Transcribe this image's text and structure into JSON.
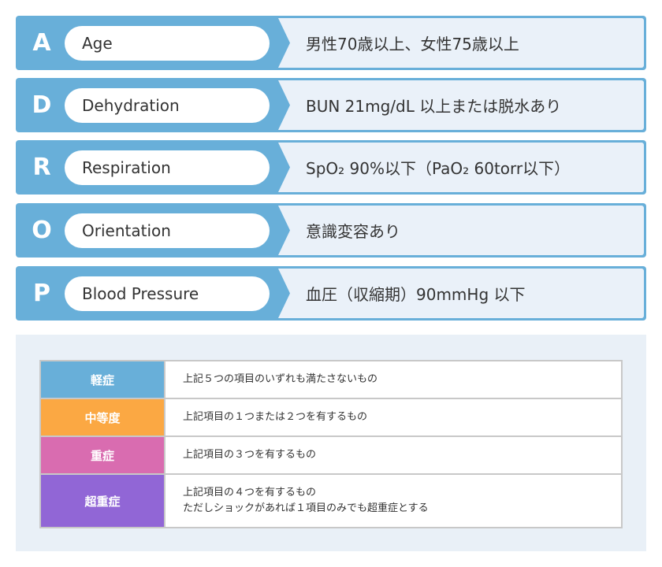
{
  "criteria": [
    {
      "letter": "A",
      "name": "Age",
      "desc": "男性70歳以上、女性75歳以上"
    },
    {
      "letter": "D",
      "name": "Dehydration",
      "desc": "BUN 21mg/dL 以上または脱水あり"
    },
    {
      "letter": "R",
      "name": "Respiration",
      "desc": "SpO₂ 90%以下（PaO₂ 60torr以下）"
    },
    {
      "letter": "O",
      "name": "Orientation",
      "desc": "意識変容あり"
    },
    {
      "letter": "P",
      "name": "Blood Pressure",
      "desc": "血圧（収縮期）90mmHg 以下"
    }
  ],
  "severity": [
    {
      "label": "軽症",
      "color": "#68afd9",
      "lines": [
        "上記５つの項目のいずれも満たさないもの"
      ]
    },
    {
      "label": "中等度",
      "color": "#fba843",
      "lines": [
        "上記項目の１つまたは２つを有するもの"
      ]
    },
    {
      "label": "重症",
      "color": "#d96cb0",
      "lines": [
        "上記項目の３つを有するもの"
      ]
    },
    {
      "label": "超重症",
      "color": "#9166d6",
      "lines": [
        "上記項目の４つを有するもの",
        "ただしショックがあれば１項目のみでも超重症とする"
      ]
    }
  ]
}
